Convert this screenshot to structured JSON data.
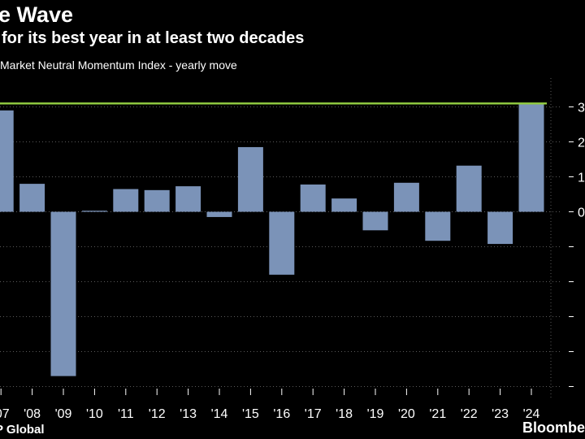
{
  "header": {
    "title": "e Wave",
    "subtitle": "for its best year in at least two decades",
    "legend_label": "Market Neutral Momentum Index - yearly move"
  },
  "footer": {
    "source": "P Global",
    "brand": "Bloombe"
  },
  "colors": {
    "background": "#000000",
    "bar": "#7b93b8",
    "reference_line": "#8dc63f",
    "grid": "#5a5a5a",
    "text": "#ffffff"
  },
  "chart_data": {
    "type": "bar",
    "title": "e Wave",
    "subtitle": "for its best year in at least two decades",
    "series": [
      {
        "name": "Market Neutral Momentum Index - yearly move",
        "values": [
          29,
          8,
          -47,
          0.3,
          6.5,
          6.2,
          7.3,
          -1.5,
          18.5,
          -18,
          7.8,
          3.8,
          -5.3,
          8.3,
          -8.3,
          13.2,
          -9.2,
          30.8
        ]
      }
    ],
    "categories": [
      "'07",
      "'08",
      "'09",
      "'10",
      "'11",
      "'12",
      "'13",
      "'14",
      "'15",
      "'16",
      "'17",
      "'18",
      "'19",
      "'20",
      "'21",
      "'22",
      "'23",
      "'24"
    ],
    "reference_line": {
      "value": 31,
      "label": ""
    },
    "y_ticks": [
      {
        "value": 30,
        "label": "3"
      },
      {
        "value": 20,
        "label": "2"
      },
      {
        "value": 10,
        "label": "1"
      },
      {
        "value": 0,
        "label": "0"
      },
      {
        "value": -10,
        "label": ""
      },
      {
        "value": -20,
        "label": ""
      },
      {
        "value": -30,
        "label": ""
      },
      {
        "value": -40,
        "label": ""
      },
      {
        "value": -50,
        "label": ""
      }
    ],
    "ylim": [
      -52,
      33
    ],
    "xlabel": "",
    "ylabel": "",
    "grid": true,
    "legend": "top-left"
  }
}
